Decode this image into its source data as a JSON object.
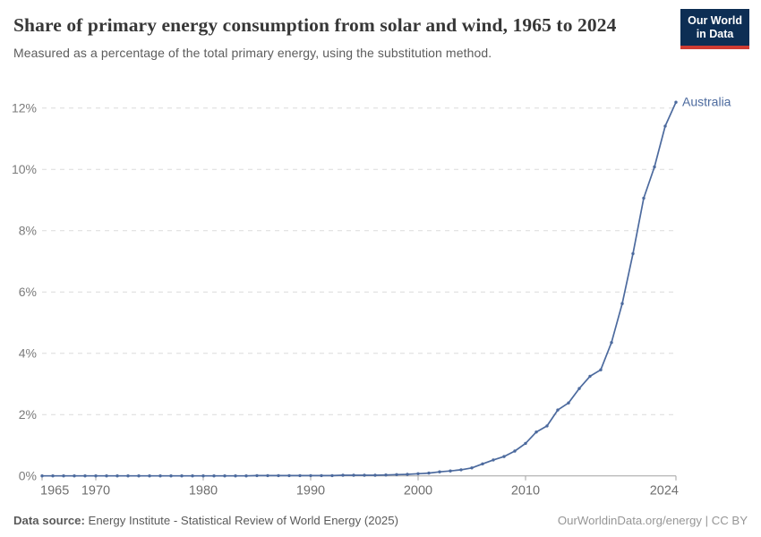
{
  "header": {
    "logo": {
      "line1": "Our World",
      "line2": "in Data"
    }
  },
  "chart_data": {
    "type": "line",
    "title": "Share of primary energy consumption from solar and wind, 1965 to 2024",
    "subtitle": "Measured as a percentage of the total primary energy, using the substitution method.",
    "series": [
      {
        "name": "Australia",
        "color": "#4C6A9E",
        "x": [
          1965,
          1966,
          1967,
          1968,
          1969,
          1970,
          1971,
          1972,
          1973,
          1974,
          1975,
          1976,
          1977,
          1978,
          1979,
          1980,
          1981,
          1982,
          1983,
          1984,
          1985,
          1986,
          1987,
          1988,
          1989,
          1990,
          1991,
          1992,
          1993,
          1994,
          1995,
          1996,
          1997,
          1998,
          1999,
          2000,
          2001,
          2002,
          2003,
          2004,
          2005,
          2006,
          2007,
          2008,
          2009,
          2010,
          2011,
          2012,
          2013,
          2014,
          2015,
          2016,
          2017,
          2018,
          2019,
          2020,
          2021,
          2022,
          2023,
          2024
        ],
        "values": [
          0,
          0,
          0,
          0,
          0,
          0,
          0,
          0,
          0,
          0,
          0,
          0,
          0,
          0,
          0,
          0,
          0,
          0,
          0,
          0,
          0.01,
          0.01,
          0.01,
          0.01,
          0.01,
          0.01,
          0.01,
          0.01,
          0.02,
          0.02,
          0.02,
          0.02,
          0.03,
          0.04,
          0.05,
          0.07,
          0.09,
          0.13,
          0.16,
          0.2,
          0.26,
          0.39,
          0.52,
          0.63,
          0.81,
          1.06,
          1.43,
          1.63,
          2.15,
          2.38,
          2.85,
          3.25,
          3.46,
          4.35,
          5.62,
          7.25,
          9.06,
          10.08,
          11.41,
          12.19
        ]
      }
    ],
    "end_label": "Australia",
    "x_ticks": [
      1965,
      1970,
      1980,
      1990,
      2000,
      2010,
      2024
    ],
    "x_tick_labels": [
      "1965",
      "1970",
      "1980",
      "1990",
      "2000",
      "2010",
      "2024"
    ],
    "y_ticks": [
      0,
      2,
      4,
      6,
      8,
      10,
      12
    ],
    "y_tick_labels": [
      "0%",
      "2%",
      "4%",
      "6%",
      "8%",
      "10%",
      "12%"
    ],
    "xlim": [
      1965,
      2024
    ],
    "ylim": [
      0,
      12.3
    ],
    "grid": "horizontal-dashed",
    "legend_position": "end-of-line"
  },
  "footer": {
    "source_label": "Data source:",
    "source_text": " Energy Institute - Statistical Review of World Energy (2025)",
    "credit": "OurWorldinData.org/energy | CC BY"
  },
  "colors": {
    "line": "#4C6A9E",
    "grid": "#dcdcdc",
    "axis": "#a1a1a1",
    "y_tick_label": "#7b7b7b",
    "x_tick_label": "#6f6f6f",
    "end_label": "#4C6A9E"
  }
}
